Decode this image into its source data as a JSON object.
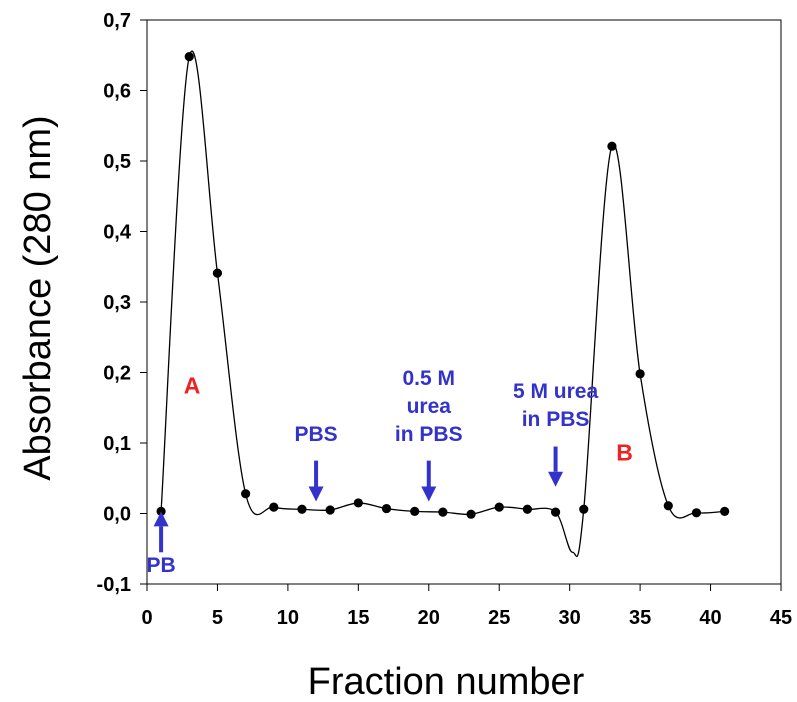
{
  "chart_data": {
    "type": "line",
    "xlabel": "Fraction number",
    "ylabel": "Absorbance (280 nm)",
    "xlim": [
      0,
      45
    ],
    "ylim": [
      -0.1,
      0.7
    ],
    "x_ticks": [
      {
        "value": 0,
        "label": "0"
      },
      {
        "value": 5,
        "label": "5"
      },
      {
        "value": 10,
        "label": "10"
      },
      {
        "value": 15,
        "label": "15"
      },
      {
        "value": 20,
        "label": "20"
      },
      {
        "value": 25,
        "label": "25"
      },
      {
        "value": 30,
        "label": "30"
      },
      {
        "value": 35,
        "label": "35"
      },
      {
        "value": 40,
        "label": "40"
      },
      {
        "value": 45,
        "label": "45"
      }
    ],
    "y_ticks": [
      {
        "value": -0.1,
        "label": "-0,1"
      },
      {
        "value": 0.0,
        "label": "0,0"
      },
      {
        "value": 0.1,
        "label": "0,1"
      },
      {
        "value": 0.2,
        "label": "0,2"
      },
      {
        "value": 0.3,
        "label": "0,3"
      },
      {
        "value": 0.4,
        "label": "0,4"
      },
      {
        "value": 0.5,
        "label": "0,5"
      },
      {
        "value": 0.6,
        "label": "0,6"
      },
      {
        "value": 0.7,
        "label": "0,7"
      }
    ],
    "grid": false,
    "series": [
      {
        "points": [
          {
            "x": 1,
            "y": 0.003
          },
          {
            "x": 3,
            "y": 0.648
          },
          {
            "x": 5,
            "y": 0.341
          },
          {
            "x": 7,
            "y": 0.028
          },
          {
            "x": 9,
            "y": 0.009
          },
          {
            "x": 11,
            "y": 0.006
          },
          {
            "x": 13,
            "y": 0.005
          },
          {
            "x": 15,
            "y": 0.015
          },
          {
            "x": 17,
            "y": 0.007
          },
          {
            "x": 19,
            "y": 0.003
          },
          {
            "x": 21,
            "y": 0.002
          },
          {
            "x": 23,
            "y": -0.001
          },
          {
            "x": 25,
            "y": 0.009
          },
          {
            "x": 27,
            "y": 0.006
          },
          {
            "x": 29,
            "y": 0.002
          },
          {
            "x": 31,
            "y": 0.006
          },
          {
            "x": 33,
            "y": 0.521
          },
          {
            "x": 35,
            "y": 0.198
          },
          {
            "x": 37,
            "y": 0.011
          },
          {
            "x": 39,
            "y": 0.001
          },
          {
            "x": 41,
            "y": 0.003
          }
        ],
        "curve_min": {
          "x": 30.2,
          "y": -0.055
        }
      }
    ],
    "colors": {
      "line": "#000000",
      "marker": "#000000",
      "arrow": "#3333cc",
      "arrow_text": "#3333cc",
      "peak_label": "#ee2222"
    },
    "annotations": {
      "peak_labels": [
        {
          "id": "A",
          "text": "A",
          "x": 3.2,
          "y": 0.17
        },
        {
          "id": "B",
          "text": "B",
          "x": 33.9,
          "y": 0.075
        }
      ],
      "arrows": [
        {
          "id": "pb",
          "lines": [
            "PB"
          ],
          "x": 1,
          "direction": "up",
          "tip_y": 0.003,
          "tail_y": -0.055,
          "text_y": -0.083
        },
        {
          "id": "pbs",
          "lines": [
            "PBS"
          ],
          "x": 12,
          "direction": "down",
          "tip_y": 0.017,
          "tail_y": 0.075,
          "text_y": 0.103
        },
        {
          "id": "urea05",
          "lines": [
            "0.5 M",
            "urea",
            "in PBS"
          ],
          "x": 20,
          "direction": "down",
          "tip_y": 0.017,
          "tail_y": 0.075,
          "text_y": 0.103
        },
        {
          "id": "urea5",
          "lines": [
            "5 M urea",
            "in PBS"
          ],
          "x": 29,
          "direction": "down",
          "tip_y": 0.038,
          "tail_y": 0.095,
          "text_y": 0.124
        }
      ]
    }
  }
}
